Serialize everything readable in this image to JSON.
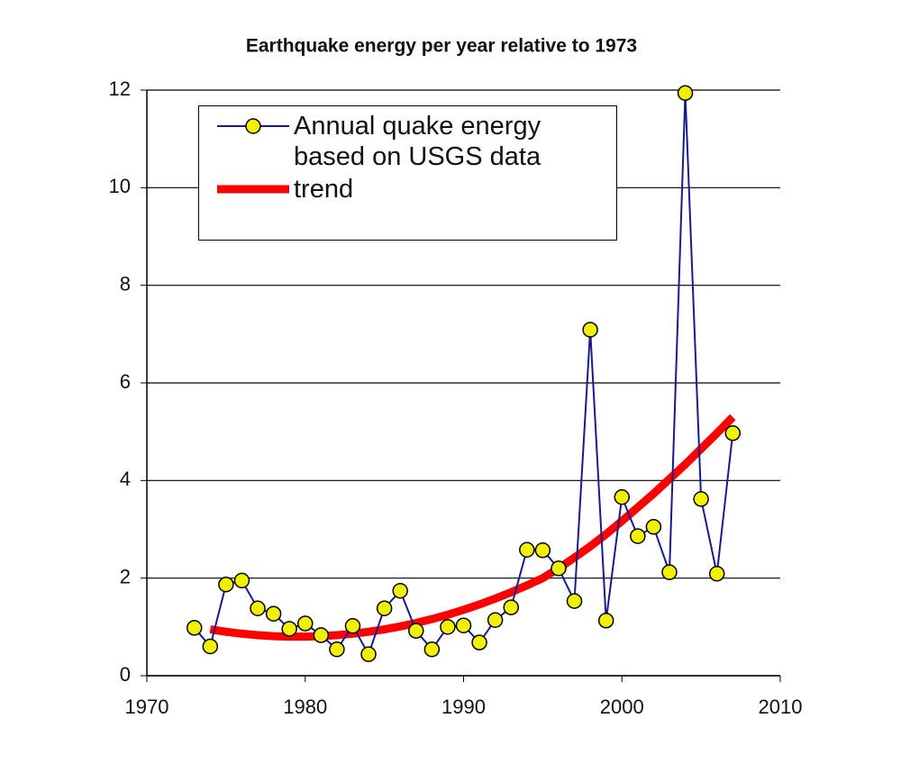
{
  "chart_data": {
    "type": "line",
    "title": "Earthquake energy per year relative to 1973",
    "x": [
      1973,
      1974,
      1975,
      1976,
      1977,
      1978,
      1979,
      1980,
      1981,
      1982,
      1983,
      1984,
      1985,
      1986,
      1987,
      1988,
      1989,
      1990,
      1991,
      1992,
      1993,
      1994,
      1995,
      1996,
      1997,
      1998,
      1999,
      2000,
      2001,
      2002,
      2003,
      2004,
      2005,
      2006,
      2007
    ],
    "series": [
      {
        "name": "Annual quake energy based on USGS data",
        "color": "#1a1a8c",
        "marker_color": "#f0f000",
        "values": [
          0.98,
          0.6,
          1.87,
          1.95,
          1.38,
          1.27,
          0.96,
          1.07,
          0.83,
          0.54,
          1.02,
          0.44,
          1.38,
          1.74,
          0.92,
          0.54,
          1.0,
          1.03,
          0.68,
          1.14,
          1.4,
          2.58,
          2.57,
          2.2,
          1.53,
          7.09,
          1.13,
          3.66,
          2.86,
          3.05,
          2.12,
          11.94,
          3.62,
          2.09,
          4.97
        ]
      },
      {
        "name": "trend",
        "color": "#ff0000",
        "values": [
          null,
          0.95,
          0.9,
          0.86,
          0.83,
          0.81,
          0.8,
          0.8,
          0.81,
          0.83,
          0.86,
          0.9,
          0.95,
          1.01,
          1.08,
          1.16,
          1.25,
          1.35,
          1.46,
          1.58,
          1.71,
          1.85,
          2.0,
          2.2,
          2.42,
          2.65,
          2.9,
          3.17,
          3.45,
          3.73,
          4.03,
          4.33,
          4.65,
          4.97,
          5.3
        ]
      }
    ],
    "xlim": [
      1970,
      2010
    ],
    "xticks": [
      1970,
      1980,
      1990,
      2000,
      2010
    ],
    "ylim": [
      0,
      12
    ],
    "yticks": [
      0,
      2,
      4,
      6,
      8,
      10,
      12
    ],
    "grid": true
  }
}
